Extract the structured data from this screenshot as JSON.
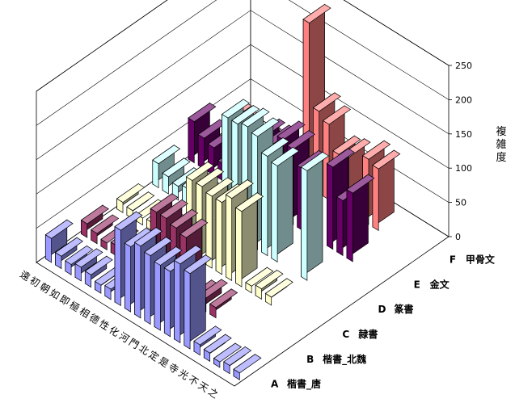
{
  "chart_data": {
    "type": "bar",
    "subtype": "3d-column",
    "zlabel": "複雑度",
    "zlim": [
      0,
      250
    ],
    "zticks": [
      0,
      50,
      100,
      150,
      200,
      250
    ],
    "grid": true,
    "categories": [
      "之",
      "天",
      "不",
      "光",
      "寺",
      "是",
      "定",
      "北",
      "門",
      "河",
      "化",
      "性",
      "德",
      "相",
      "極",
      "即",
      "如",
      "朝",
      "初",
      "遠"
    ],
    "series": [
      {
        "letter": "A",
        "name": "楷書_唐",
        "color": "#9999ff",
        "values": [
          10,
          12,
          8,
          12,
          15,
          110,
          115,
          95,
          95,
          100,
          105,
          95,
          110,
          15,
          12,
          18,
          20,
          15,
          18,
          35
        ]
      },
      {
        "letter": "B",
        "name": "楷書_北魏",
        "color": "#993366",
        "values": [
          null,
          null,
          null,
          null,
          null,
          null,
          15,
          20,
          10,
          90,
          95,
          100,
          100,
          15,
          10,
          12,
          15,
          10,
          15,
          20
        ]
      },
      {
        "letter": "C",
        "name": "隷書",
        "color": "#ffffcc",
        "values": [
          null,
          null,
          null,
          null,
          12,
          15,
          10,
          110,
          120,
          105,
          105,
          110,
          110,
          20,
          15,
          10,
          12,
          10,
          12,
          15
        ]
      },
      {
        "letter": "D",
        "name": "篆書",
        "color": "#ccffff",
        "values": [
          null,
          null,
          null,
          null,
          160,
          null,
          null,
          140,
          145,
          165,
          170,
          165,
          165,
          30,
          25,
          20,
          25,
          20,
          25,
          35
        ]
      },
      {
        "letter": "E",
        "name": "金文",
        "color": "#660066",
        "values": [
          null,
          null,
          null,
          100,
          80,
          120,
          null,
          null,
          90,
          110,
          115,
          100,
          100,
          15,
          null,
          30,
          25,
          40,
          45,
          60
        ]
      },
      {
        "letter": "F",
        "name": "甲骨文",
        "color": "#ff8080",
        "values": [
          null,
          null,
          null,
          null,
          90,
          95,
          null,
          80,
          75,
          110,
          120,
          240,
          null,
          null,
          null,
          null,
          18,
          null,
          20,
          25
        ]
      }
    ]
  }
}
